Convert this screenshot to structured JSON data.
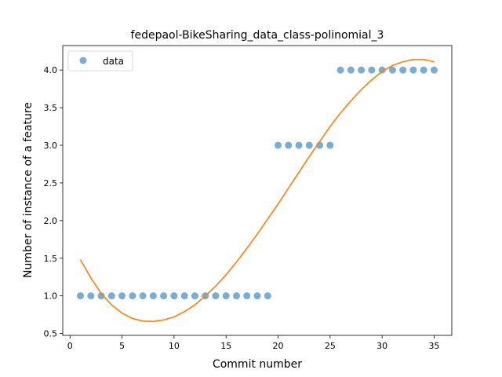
{
  "chart_data": {
    "type": "scatter",
    "title": "fedepaol-BikeSharing_data_class-polinomial_3",
    "xlabel": "Commit number",
    "ylabel": "Number of instance of a feature",
    "xlim": [
      -0.7,
      36.7
    ],
    "ylim": [
      0.475,
      4.325
    ],
    "xticks": [
      0,
      5,
      10,
      15,
      20,
      25,
      30,
      35
    ],
    "yticks": [
      0.5,
      1.0,
      1.5,
      2.0,
      2.5,
      3.0,
      3.5,
      4.0
    ],
    "xtick_labels": [
      "0",
      "5",
      "10",
      "15",
      "20",
      "25",
      "30",
      "35"
    ],
    "ytick_labels": [
      "0.5",
      "1.0",
      "1.5",
      "2.0",
      "2.5",
      "3.0",
      "3.5",
      "4.0"
    ],
    "grid": false,
    "legend_position": "upper-left",
    "series": [
      {
        "name": "data",
        "kind": "scatter",
        "color": "#1f77b4",
        "x": [
          1,
          2,
          3,
          4,
          5,
          6,
          7,
          8,
          9,
          10,
          11,
          12,
          13,
          14,
          15,
          16,
          17,
          18,
          19,
          20,
          21,
          22,
          23,
          24,
          25,
          26,
          27,
          28,
          29,
          30,
          31,
          32,
          33,
          34,
          35
        ],
        "y": [
          1,
          1,
          1,
          1,
          1,
          1,
          1,
          1,
          1,
          1,
          1,
          1,
          1,
          1,
          1,
          1,
          1,
          1,
          1,
          3,
          3,
          3,
          3,
          3,
          3,
          4,
          4,
          4,
          4,
          4,
          4,
          4,
          4,
          4,
          4
        ]
      },
      {
        "kind": "line",
        "color": "#ff7f0e",
        "x": [
          1,
          2,
          3,
          4,
          5,
          6,
          7,
          8,
          9,
          10,
          11,
          12,
          13,
          14,
          15,
          16,
          17,
          18,
          19,
          20,
          21,
          22,
          23,
          24,
          25,
          26,
          27,
          28,
          29,
          30,
          31,
          32,
          33,
          34,
          35
        ],
        "y": [
          1.48,
          1.24,
          1.03,
          0.88,
          0.77,
          0.7,
          0.665,
          0.66,
          0.68,
          0.72,
          0.79,
          0.88,
          1.0,
          1.13,
          1.28,
          1.45,
          1.63,
          1.82,
          2.02,
          2.22,
          2.43,
          2.64,
          2.85,
          3.05,
          3.25,
          3.43,
          3.59,
          3.74,
          3.87,
          3.98,
          4.06,
          4.11,
          4.14,
          4.14,
          4.11
        ]
      }
    ]
  }
}
